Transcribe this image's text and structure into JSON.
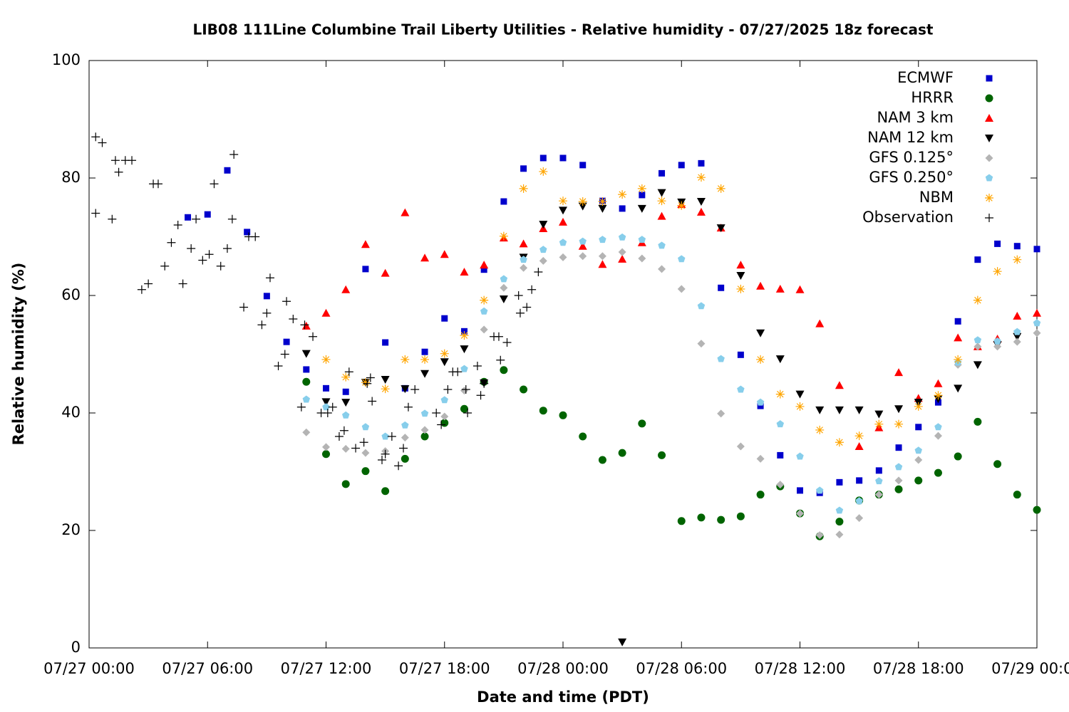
{
  "chart_data": {
    "type": "scatter",
    "title": "LIB08 111Line Columbine Trail Liberty Utilities - Relative humidity - 07/27/2025 18z forecast",
    "xlabel": "Date and time (PDT)",
    "ylabel": "Relative humidity (%)",
    "xlim": [
      "07/27 00:00",
      "07/29 00:00"
    ],
    "xticks": [
      "07/27 00:00",
      "07/27 06:00",
      "07/27 12:00",
      "07/27 18:00",
      "07/28 00:00",
      "07/28 06:00",
      "07/28 12:00",
      "07/28 18:00",
      "07/29 00:00"
    ],
    "ylim": [
      0,
      100
    ],
    "yticks": [
      0,
      20,
      40,
      60,
      80,
      100
    ],
    "legend": "top-right",
    "grid": false,
    "x": [
      "07/27 05:00",
      "07/27 06:00",
      "07/27 07:00",
      "07/27 08:00",
      "07/27 09:00",
      "07/27 10:00",
      "07/27 11:00",
      "07/27 12:00",
      "07/27 13:00",
      "07/27 14:00",
      "07/27 15:00",
      "07/27 16:00",
      "07/27 17:00",
      "07/27 18:00",
      "07/27 19:00",
      "07/27 20:00",
      "07/27 21:00",
      "07/27 22:00",
      "07/27 23:00",
      "07/28 00:00",
      "07/28 01:00",
      "07/28 02:00",
      "07/28 03:00",
      "07/28 04:00",
      "07/28 05:00",
      "07/28 06:00",
      "07/28 07:00",
      "07/28 08:00",
      "07/28 09:00",
      "07/28 10:00",
      "07/28 11:00",
      "07/28 12:00",
      "07/28 13:00",
      "07/28 14:00",
      "07/28 15:00",
      "07/28 16:00",
      "07/28 17:00",
      "07/28 18:00",
      "07/28 19:00",
      "07/28 20:00",
      "07/28 21:00",
      "07/28 22:00",
      "07/28 23:00",
      "07/29 00:00"
    ],
    "series": [
      {
        "name": "ECMWF",
        "color": "#0000cc",
        "marker": "square",
        "values": [
          73.3,
          73.8,
          81.3,
          70.8,
          59.9,
          52.1,
          47.4,
          44.2,
          43.6,
          64.5,
          52.0,
          44.2,
          50.4,
          56.1,
          53.9,
          64.4,
          76.0,
          81.6,
          83.4,
          83.4,
          82.2,
          76.1,
          74.8,
          77.1,
          80.8,
          82.2,
          82.5,
          61.3,
          49.9,
          41.2,
          32.8,
          26.8,
          26.4,
          28.2,
          28.5,
          30.2,
          34.1,
          37.6,
          41.8,
          55.6,
          66.1,
          68.8,
          68.4,
          67.9
        ]
      },
      {
        "name": "HRRR",
        "color": "#006400",
        "marker": "circle",
        "values": [
          null,
          null,
          null,
          null,
          null,
          null,
          45.3,
          33.0,
          27.9,
          30.1,
          26.7,
          32.2,
          36.0,
          38.3,
          40.7,
          45.3,
          47.3,
          44.0,
          40.4,
          39.6,
          36.0,
          32.0,
          33.2,
          38.2,
          32.8,
          21.6,
          22.2,
          21.8,
          22.4,
          26.1,
          27.5,
          22.9,
          19.0,
          21.5,
          25.1,
          26.1,
          27.0,
          28.5,
          29.8,
          32.6,
          38.5,
          31.3,
          26.1,
          23.5
        ]
      },
      {
        "name": "NAM 3 km",
        "color": "#ff0000",
        "marker": "triangle",
        "values": [
          null,
          null,
          null,
          null,
          null,
          null,
          54.8,
          57.0,
          61.0,
          68.7,
          63.8,
          74.1,
          66.4,
          67.0,
          64.0,
          65.2,
          69.8,
          68.8,
          71.4,
          72.5,
          68.4,
          65.3,
          66.2,
          69.0,
          73.5,
          75.5,
          74.2,
          71.5,
          65.2,
          61.6,
          61.1,
          61.0,
          55.2,
          44.7,
          34.3,
          37.5,
          46.9,
          42.5,
          45.0,
          52.8,
          51.3,
          52.6,
          56.5,
          57.0
        ]
      },
      {
        "name": "NAM 12 km",
        "color": "#000000",
        "marker": "triangle-down",
        "values": [
          null,
          null,
          null,
          null,
          null,
          null,
          50.1,
          41.9,
          41.8,
          45.2,
          45.7,
          44.1,
          46.7,
          48.7,
          50.9,
          45.1,
          59.4,
          66.5,
          72.1,
          74.5,
          75.2,
          74.8,
          1.0,
          74.8,
          77.5,
          75.9,
          76.0,
          71.5,
          63.4,
          53.6,
          49.2,
          43.2,
          40.5,
          40.5,
          40.5,
          39.8,
          40.7,
          41.8,
          42.4,
          44.2,
          48.2,
          51.6,
          53.0,
          null
        ]
      },
      {
        "name": "GFS 0.125°",
        "color": "#b4b4b4",
        "marker": "diamond",
        "values": [
          null,
          null,
          null,
          null,
          null,
          null,
          36.7,
          34.2,
          33.9,
          33.2,
          33.5,
          35.8,
          37.1,
          39.4,
          43.8,
          54.2,
          61.3,
          64.7,
          65.9,
          66.5,
          66.7,
          66.7,
          67.4,
          66.3,
          64.5,
          61.1,
          51.8,
          39.9,
          34.3,
          32.2,
          27.8,
          22.9,
          19.2,
          19.3,
          22.1,
          26.1,
          28.5,
          32.0,
          36.1,
          48.2,
          51.3,
          51.3,
          52.1,
          53.6
        ]
      },
      {
        "name": "GFS 0.250°",
        "color": "#87ceeb",
        "marker": "pentagon",
        "values": [
          null,
          null,
          null,
          null,
          null,
          null,
          42.3,
          41.0,
          39.6,
          37.6,
          36.0,
          37.9,
          39.9,
          42.2,
          47.5,
          57.3,
          62.8,
          66.1,
          67.8,
          69.0,
          69.2,
          69.5,
          69.9,
          69.5,
          68.5,
          66.2,
          58.2,
          49.2,
          44.0,
          41.8,
          38.1,
          32.6,
          26.8,
          23.4,
          25.0,
          28.4,
          30.8,
          33.6,
          37.6,
          48.6,
          52.4,
          52.2,
          53.8,
          55.3
        ]
      },
      {
        "name": "NBM",
        "color": "#ffa500",
        "marker": "asterisk",
        "values": [
          null,
          null,
          null,
          null,
          null,
          null,
          null,
          49.1,
          46.1,
          45.2,
          44.1,
          49.1,
          49.1,
          50.1,
          53.2,
          59.2,
          70.1,
          78.2,
          81.1,
          76.1,
          76.0,
          76.0,
          77.2,
          78.2,
          76.1,
          75.3,
          80.1,
          78.2,
          61.1,
          49.1,
          43.2,
          41.1,
          37.1,
          35.0,
          36.1,
          38.1,
          38.1,
          41.1,
          43.0,
          49.1,
          59.2,
          64.1,
          66.1,
          null
        ]
      },
      {
        "name": "Observation",
        "color": "#000000",
        "marker": "plus",
        "x": [
          "07/27 00:20",
          "07/27 00:20",
          "07/27 00:40",
          "07/27 01:10",
          "07/27 01:20",
          "07/27 01:30",
          "07/27 01:50",
          "07/27 02:10",
          "07/27 02:40",
          "07/27 03:00",
          "07/27 03:15",
          "07/27 03:30",
          "07/27 03:50",
          "07/27 04:10",
          "07/27 04:30",
          "07/27 04:45",
          "07/27 05:10",
          "07/27 05:25",
          "07/27 05:45",
          "07/27 06:05",
          "07/27 06:20",
          "07/27 06:40",
          "07/27 07:00",
          "07/27 07:15",
          "07/27 07:20",
          "07/27 07:50",
          "07/27 08:05",
          "07/27 08:25",
          "07/27 08:45",
          "07/27 09:00",
          "07/27 09:10",
          "07/27 09:35",
          "07/27 09:55",
          "07/27 10:00",
          "07/27 10:20",
          "07/27 10:45",
          "07/27 10:55",
          "07/27 11:20",
          "07/27 11:45",
          "07/27 12:05",
          "07/27 12:20",
          "07/27 12:40",
          "07/27 12:55",
          "07/27 13:10",
          "07/27 13:30",
          "07/27 13:55",
          "07/27 14:05",
          "07/27 14:15",
          "07/27 14:20",
          "07/27 14:50",
          "07/27 15:00",
          "07/27 15:20",
          "07/27 15:40",
          "07/27 15:55",
          "07/27 16:10",
          "07/27 16:30",
          "07/27 17:35",
          "07/27 17:50",
          "07/27 18:10",
          "07/27 18:25",
          "07/27 18:40",
          "07/27 19:05",
          "07/27 19:10",
          "07/27 19:40",
          "07/27 19:50",
          "07/27 20:00",
          "07/27 20:30",
          "07/27 20:45",
          "07/27 20:50",
          "07/27 21:10",
          "07/27 21:45",
          "07/27 21:50",
          "07/27 22:10",
          "07/27 22:25",
          "07/27 22:45"
        ],
        "values": [
          87,
          74,
          86,
          73,
          83,
          81,
          83,
          83,
          61,
          62,
          79,
          79,
          65,
          69,
          72,
          62,
          68,
          73,
          66,
          67,
          79,
          65,
          68,
          73,
          84,
          58,
          70,
          70,
          55,
          57,
          63,
          48,
          50,
          59,
          56,
          41,
          55,
          53,
          40,
          40,
          41,
          36,
          37,
          47,
          34,
          35,
          45,
          46,
          42,
          32,
          33,
          36,
          31,
          34,
          41,
          44,
          40,
          38,
          44,
          47,
          47,
          44,
          40,
          48,
          43,
          45,
          53,
          53,
          49,
          52,
          60,
          57,
          58,
          61,
          64
        ]
      }
    ]
  }
}
